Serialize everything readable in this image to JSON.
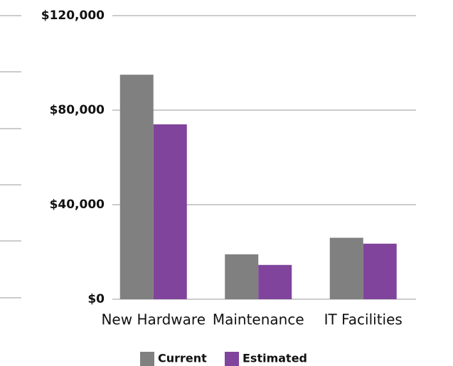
{
  "chart_data": {
    "type": "bar",
    "categories": [
      "New Hardware",
      "Maintenance",
      "IT Facilities"
    ],
    "series": [
      {
        "name": "Current",
        "color": "#808080",
        "values": [
          95000,
          19000,
          26000
        ]
      },
      {
        "name": "Estimated",
        "color": "#80449c",
        "values": [
          74000,
          14500,
          23500
        ]
      }
    ],
    "ylim": [
      0,
      120000
    ],
    "yticks": [
      {
        "value": 0,
        "label": "$0"
      },
      {
        "value": 40000,
        "label": "$40,000"
      },
      {
        "value": 80000,
        "label": "$80,000"
      },
      {
        "value": 120000,
        "label": "$120,000"
      }
    ],
    "grid": true
  }
}
